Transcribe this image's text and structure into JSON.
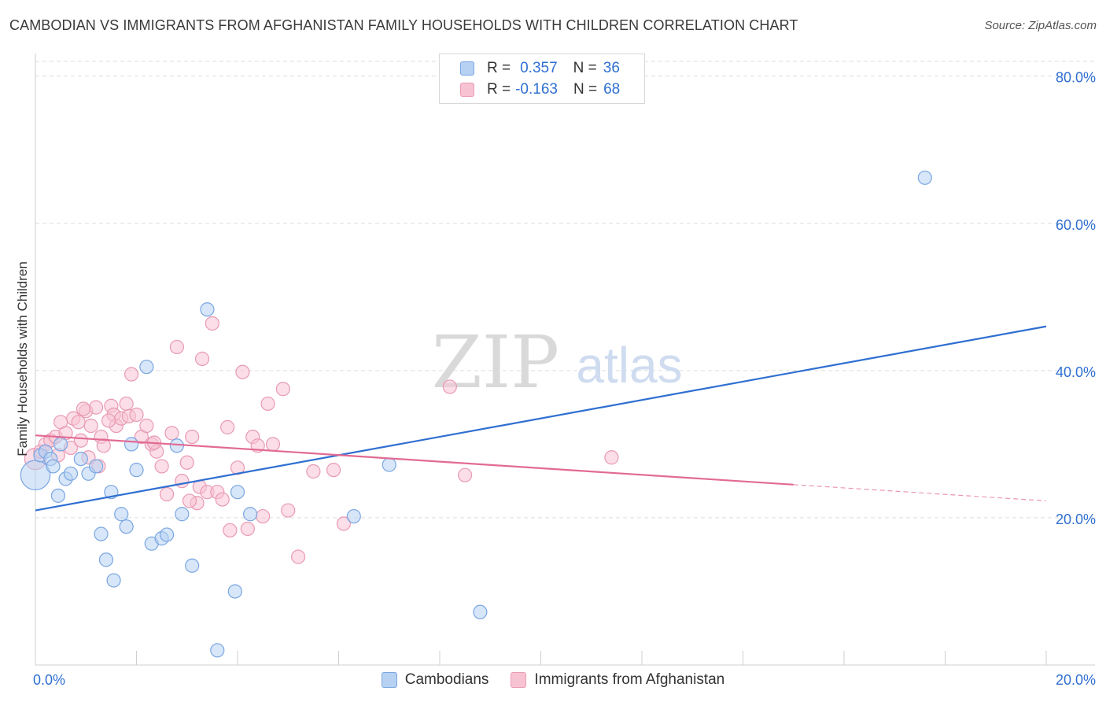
{
  "title": "CAMBODIAN VS IMMIGRANTS FROM AFGHANISTAN FAMILY HOUSEHOLDS WITH CHILDREN CORRELATION CHART",
  "source": "Source: ZipAtlas.com",
  "watermark": {
    "zip": "ZIP",
    "atlas": "atlas"
  },
  "colors": {
    "blue_fill": "#b7d1f3",
    "blue_stroke": "#7aa6e2",
    "blue_line": "#2f6fd1",
    "pink_fill": "#f7c3d3",
    "pink_stroke": "#e99ab3",
    "pink_line": "#e26a93",
    "axis_label": "#2f6fd1",
    "grid": "#dedede"
  },
  "legend_top": [
    {
      "r_label": "R =",
      "r_value": "0.357",
      "n_label": "N =",
      "n_value": "36"
    },
    {
      "r_label": "R =",
      "r_value": "-0.163",
      "n_label": "N =",
      "n_value": "68"
    }
  ],
  "legend_bottom": [
    "Cambodians",
    "Immigrants from Afghanistan"
  ],
  "chart_data": {
    "type": "scatter",
    "title": "CAMBODIAN VS IMMIGRANTS FROM AFGHANISTAN FAMILY HOUSEHOLDS WITH CHILDREN CORRELATION CHART",
    "xlabel": "",
    "ylabel": "Family Households with Children",
    "xlim": [
      0,
      20
    ],
    "ylim": [
      0,
      82
    ],
    "x_tick_labels": [
      "0.0%",
      "20.0%"
    ],
    "y_ticks": [
      20,
      40,
      60,
      80
    ],
    "y_tick_labels": [
      "20.0%",
      "40.0%",
      "60.0%",
      "80.0%"
    ],
    "grid": true,
    "series": [
      {
        "name": "Cambodians",
        "r": 0.357,
        "n": 36,
        "trend": {
          "x0": 0,
          "y0": 21.0,
          "x1": 20,
          "y1": 46.0
        },
        "points": [
          {
            "x": 0.0,
            "y": 25.8,
            "s": 2.2
          },
          {
            "x": 0.1,
            "y": 28.5
          },
          {
            "x": 0.2,
            "y": 29.0
          },
          {
            "x": 0.3,
            "y": 28.0
          },
          {
            "x": 0.35,
            "y": 27.0
          },
          {
            "x": 0.45,
            "y": 23.0
          },
          {
            "x": 0.5,
            "y": 30.0
          },
          {
            "x": 0.6,
            "y": 25.3
          },
          {
            "x": 0.7,
            "y": 26.0
          },
          {
            "x": 0.9,
            "y": 28.0
          },
          {
            "x": 1.05,
            "y": 26.0
          },
          {
            "x": 1.2,
            "y": 27.0
          },
          {
            "x": 1.3,
            "y": 17.8
          },
          {
            "x": 1.4,
            "y": 14.3
          },
          {
            "x": 1.5,
            "y": 23.5
          },
          {
            "x": 1.55,
            "y": 11.5
          },
          {
            "x": 1.7,
            "y": 20.5
          },
          {
            "x": 1.8,
            "y": 18.8
          },
          {
            "x": 1.9,
            "y": 30.0
          },
          {
            "x": 2.0,
            "y": 26.5
          },
          {
            "x": 2.2,
            "y": 40.5
          },
          {
            "x": 2.3,
            "y": 16.5
          },
          {
            "x": 2.5,
            "y": 17.2
          },
          {
            "x": 2.6,
            "y": 17.7
          },
          {
            "x": 2.8,
            "y": 29.8
          },
          {
            "x": 2.9,
            "y": 20.5
          },
          {
            "x": 3.1,
            "y": 13.5
          },
          {
            "x": 3.4,
            "y": 48.3
          },
          {
            "x": 3.6,
            "y": 2.0
          },
          {
            "x": 3.95,
            "y": 10.0
          },
          {
            "x": 4.0,
            "y": 23.5
          },
          {
            "x": 4.25,
            "y": 20.5
          },
          {
            "x": 6.3,
            "y": 20.2
          },
          {
            "x": 7.0,
            "y": 27.2
          },
          {
            "x": 8.8,
            "y": 7.2
          },
          {
            "x": 17.6,
            "y": 66.2
          }
        ]
      },
      {
        "name": "Immigrants from Afghanistan",
        "r": -0.163,
        "n": 68,
        "trend": {
          "x0": 0,
          "y0": 31.2,
          "x1": 15.0,
          "y1": 24.5,
          "dash_x1": 20,
          "dash_y1": 22.3
        },
        "points": [
          {
            "x": 0.0,
            "y": 28.0,
            "s": 1.6
          },
          {
            "x": 0.1,
            "y": 29.0
          },
          {
            "x": 0.2,
            "y": 30.0
          },
          {
            "x": 0.3,
            "y": 30.5
          },
          {
            "x": 0.4,
            "y": 31.0
          },
          {
            "x": 0.45,
            "y": 28.5
          },
          {
            "x": 0.5,
            "y": 33.0
          },
          {
            "x": 0.6,
            "y": 31.5
          },
          {
            "x": 0.7,
            "y": 29.5
          },
          {
            "x": 0.75,
            "y": 33.5
          },
          {
            "x": 0.85,
            "y": 33.0
          },
          {
            "x": 0.9,
            "y": 30.5
          },
          {
            "x": 1.0,
            "y": 34.5
          },
          {
            "x": 1.05,
            "y": 28.2
          },
          {
            "x": 1.1,
            "y": 32.5
          },
          {
            "x": 1.2,
            "y": 35.0
          },
          {
            "x": 1.25,
            "y": 27.0
          },
          {
            "x": 1.3,
            "y": 31.0
          },
          {
            "x": 1.35,
            "y": 29.8
          },
          {
            "x": 1.5,
            "y": 35.2
          },
          {
            "x": 1.55,
            "y": 34.0
          },
          {
            "x": 1.6,
            "y": 32.5
          },
          {
            "x": 1.7,
            "y": 33.5
          },
          {
            "x": 1.8,
            "y": 35.5
          },
          {
            "x": 1.85,
            "y": 33.8
          },
          {
            "x": 1.9,
            "y": 39.5
          },
          {
            "x": 2.0,
            "y": 34.0
          },
          {
            "x": 2.1,
            "y": 31.0
          },
          {
            "x": 2.2,
            "y": 32.5
          },
          {
            "x": 2.3,
            "y": 30.0
          },
          {
            "x": 2.4,
            "y": 29.0
          },
          {
            "x": 2.5,
            "y": 27.0
          },
          {
            "x": 2.6,
            "y": 23.2
          },
          {
            "x": 2.7,
            "y": 31.5
          },
          {
            "x": 2.8,
            "y": 43.2
          },
          {
            "x": 2.9,
            "y": 25.0
          },
          {
            "x": 3.0,
            "y": 27.5
          },
          {
            "x": 3.1,
            "y": 31.0
          },
          {
            "x": 3.2,
            "y": 22.0
          },
          {
            "x": 3.25,
            "y": 24.2
          },
          {
            "x": 3.3,
            "y": 41.6
          },
          {
            "x": 3.4,
            "y": 23.5
          },
          {
            "x": 3.5,
            "y": 46.4
          },
          {
            "x": 3.6,
            "y": 23.5
          },
          {
            "x": 3.7,
            "y": 22.5
          },
          {
            "x": 3.8,
            "y": 32.3
          },
          {
            "x": 3.85,
            "y": 18.3
          },
          {
            "x": 4.0,
            "y": 26.8
          },
          {
            "x": 4.1,
            "y": 39.8
          },
          {
            "x": 4.2,
            "y": 18.5
          },
          {
            "x": 4.3,
            "y": 31.0
          },
          {
            "x": 4.4,
            "y": 29.8
          },
          {
            "x": 4.5,
            "y": 20.2
          },
          {
            "x": 4.6,
            "y": 35.5
          },
          {
            "x": 4.7,
            "y": 30.0
          },
          {
            "x": 4.9,
            "y": 37.5
          },
          {
            "x": 5.0,
            "y": 21.0
          },
          {
            "x": 5.2,
            "y": 14.7
          },
          {
            "x": 5.5,
            "y": 26.3
          },
          {
            "x": 5.9,
            "y": 26.5
          },
          {
            "x": 6.1,
            "y": 19.2
          },
          {
            "x": 8.2,
            "y": 37.8
          },
          {
            "x": 8.5,
            "y": 25.8
          },
          {
            "x": 11.4,
            "y": 28.2
          },
          {
            "x": 2.35,
            "y": 30.2
          },
          {
            "x": 1.45,
            "y": 33.2
          },
          {
            "x": 0.95,
            "y": 34.8
          },
          {
            "x": 3.05,
            "y": 22.3
          }
        ]
      }
    ]
  }
}
